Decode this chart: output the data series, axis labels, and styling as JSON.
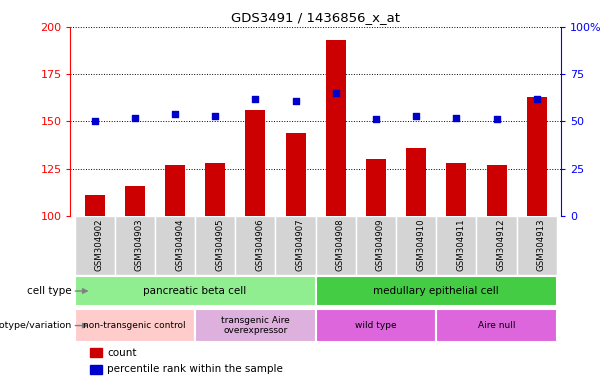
{
  "title": "GDS3491 / 1436856_x_at",
  "categories": [
    "GSM304902",
    "GSM304903",
    "GSM304904",
    "GSM304905",
    "GSM304906",
    "GSM304907",
    "GSM304908",
    "GSM304909",
    "GSM304910",
    "GSM304911",
    "GSM304912",
    "GSM304913"
  ],
  "counts": [
    111,
    116,
    127,
    128,
    156,
    144,
    193,
    130,
    136,
    128,
    127,
    163
  ],
  "percentiles": [
    50,
    52,
    54,
    53,
    62,
    61,
    65,
    51,
    53,
    52,
    51,
    62
  ],
  "ylim_left": [
    100,
    200
  ],
  "ylim_right": [
    0,
    100
  ],
  "yticks_left": [
    100,
    125,
    150,
    175,
    200
  ],
  "yticks_right": [
    0,
    25,
    50,
    75,
    100
  ],
  "bar_color": "#cc0000",
  "dot_color": "#0000cc",
  "bar_width": 0.5,
  "cell_type_color": "#90ee90",
  "cell_type_color2": "#44cc44",
  "genotype_color_pink": "#ffb6c1",
  "genotype_color_mauve": "#e0a0e0",
  "genotype_color_violet": "#cc66cc",
  "row_label_cell_type": "cell type",
  "row_label_genotype": "genotype/variation",
  "legend_count": "count",
  "legend_percentile": "percentile rank within the sample",
  "xtick_bg": "#d4d4d4"
}
